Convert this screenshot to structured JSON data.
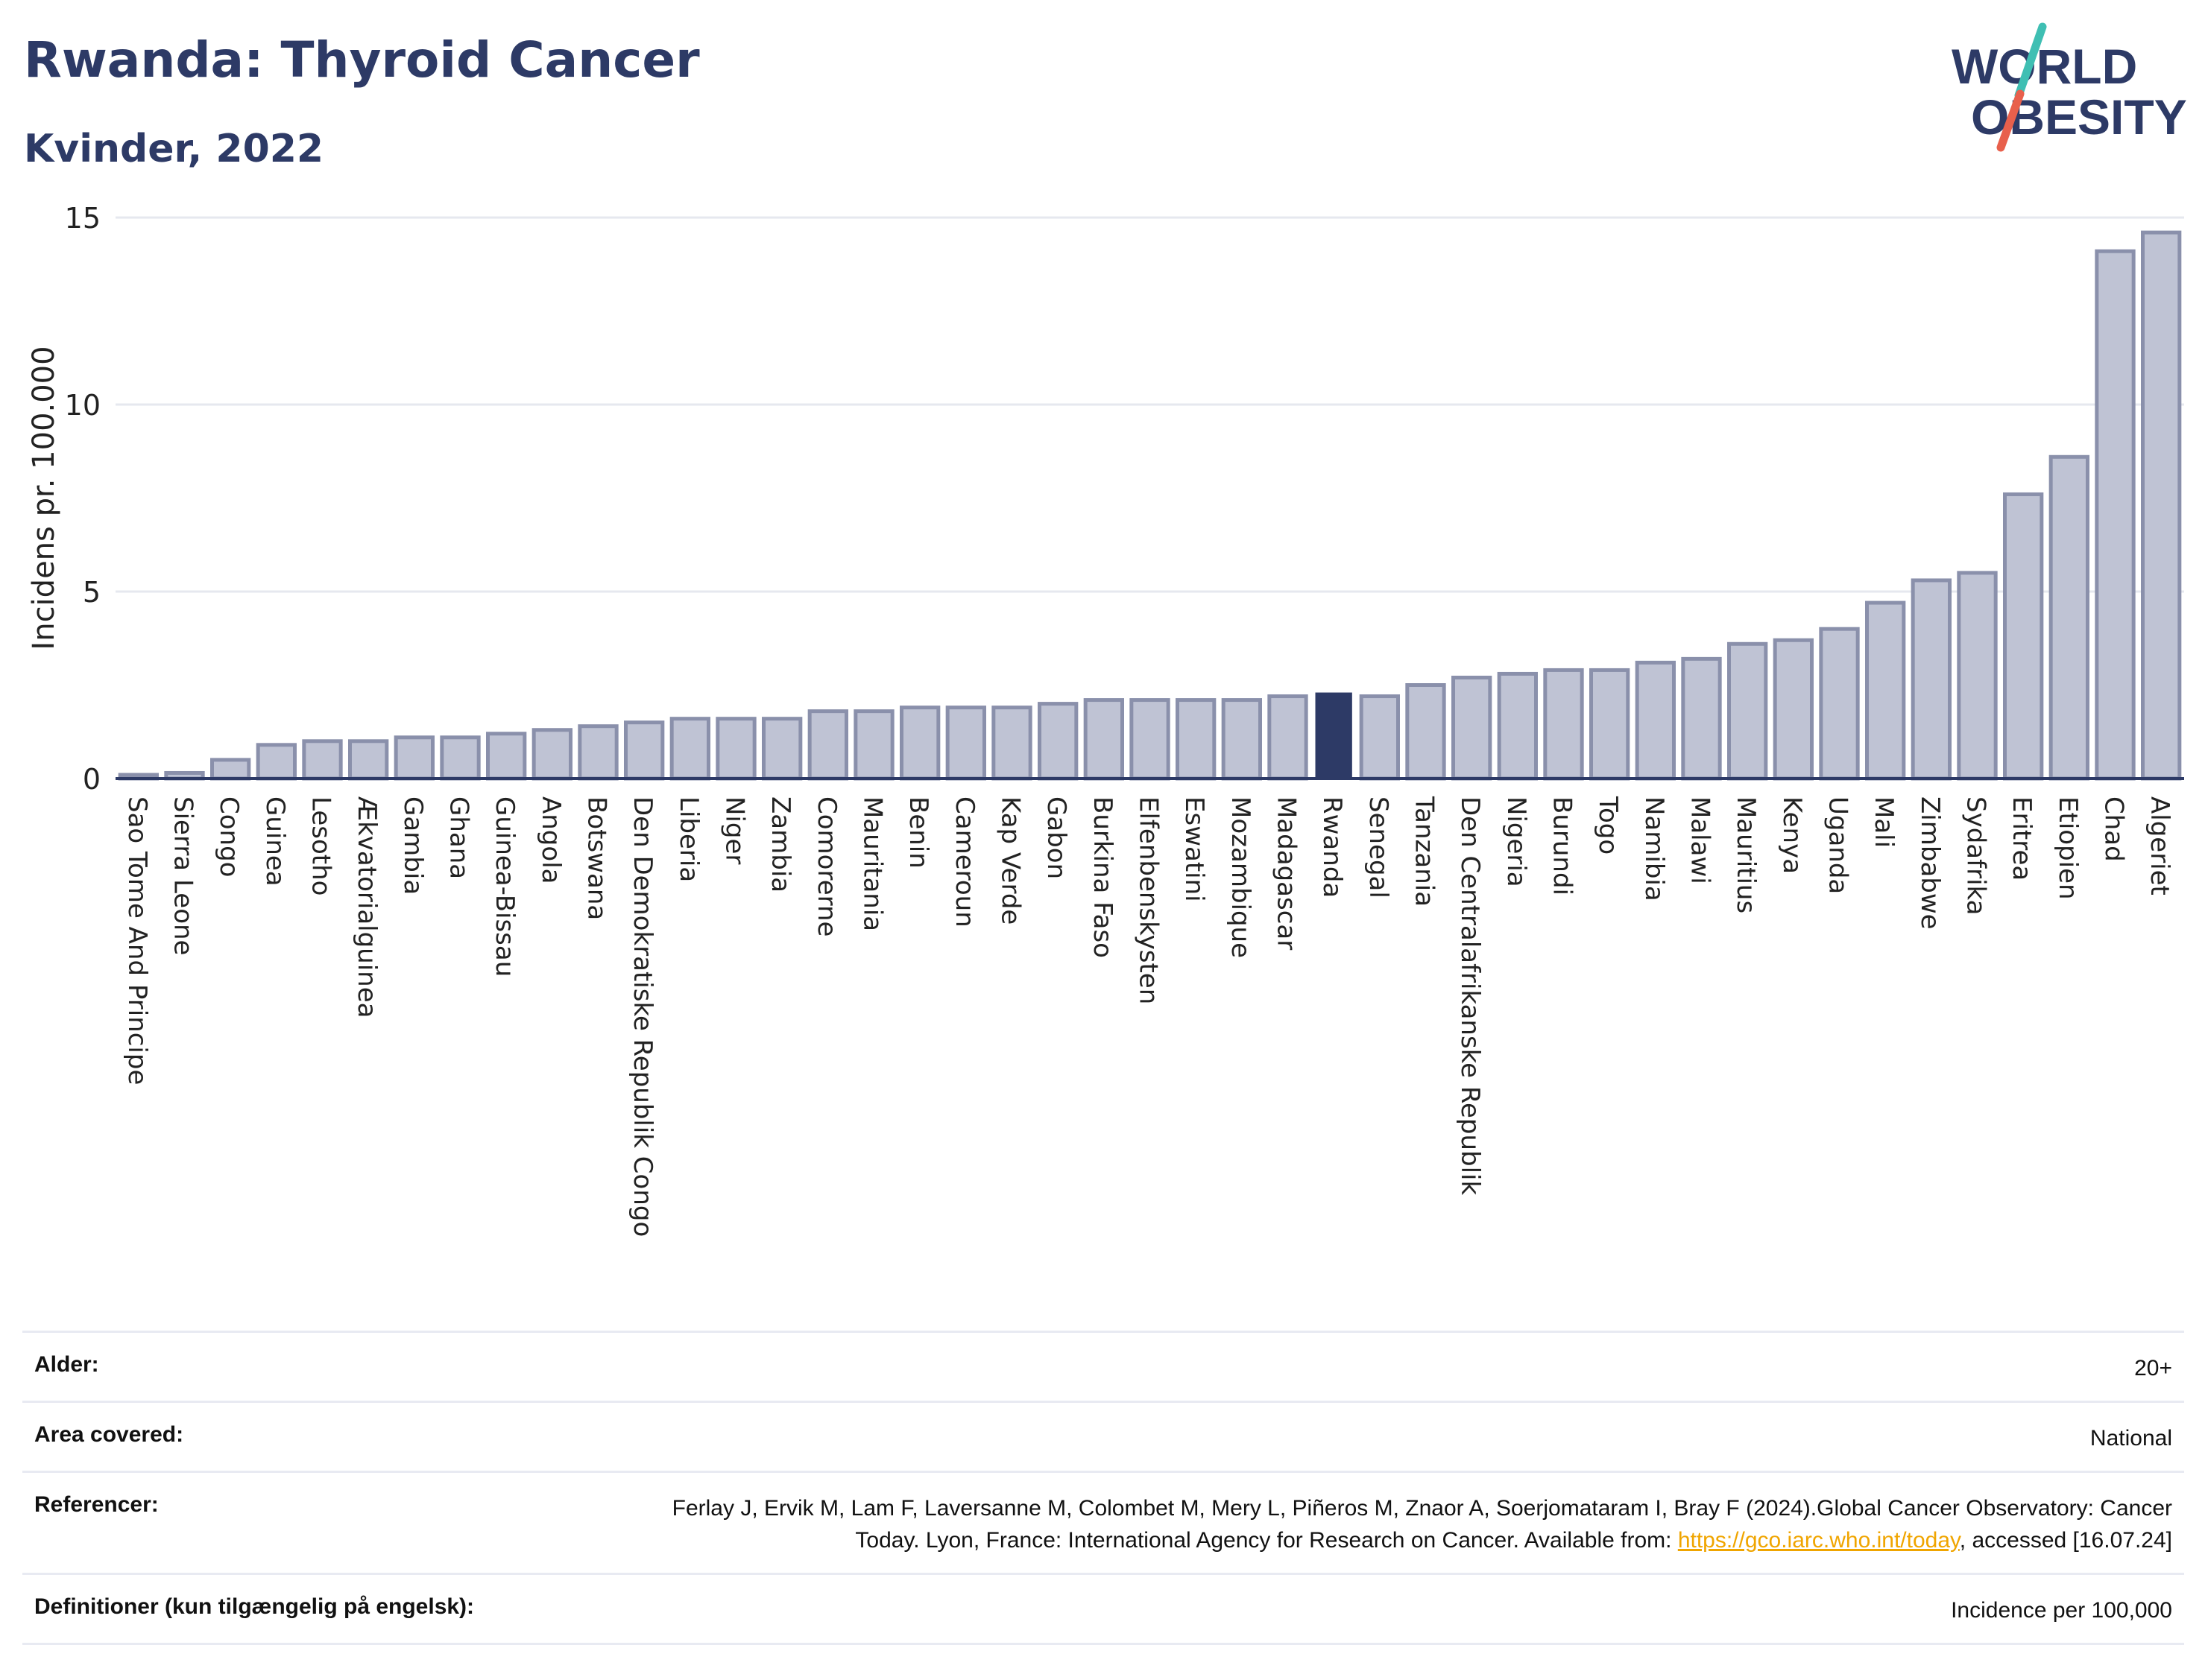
{
  "header": {
    "title": "Rwanda: Thyroid Cancer",
    "subtitle": "Kvinder, 2022"
  },
  "logo": {
    "line1": "WORLD",
    "line2": "OBESITY",
    "slash_colors": [
      "#3fbfb3",
      "#e8604c"
    ],
    "text_color": "#2d3a66"
  },
  "chart_data": {
    "type": "bar",
    "ylabel": "Incidens pr. 100.000",
    "ylim": [
      0,
      15
    ],
    "yticks": [
      0,
      5,
      10,
      15
    ],
    "grid": true,
    "highlight": "Rwanda",
    "colors": {
      "bar": "#bfc3d4",
      "bar_stroke": "#8a90ab",
      "highlight": "#2d3a66"
    },
    "categories": [
      "Sao Tome And Principe",
      "Sierra Leone",
      "Congo",
      "Guinea",
      "Lesotho",
      "Ækvatorialguinea",
      "Gambia",
      "Ghana",
      "Guinea-Bissau",
      "Angola",
      "Botswana",
      "Den Demokratiske Republik Congo",
      "Liberia",
      "Niger",
      "Zambia",
      "Comorerne",
      "Mauritania",
      "Benin",
      "Cameroun",
      "Kap Verde",
      "Gabon",
      "Burkina Faso",
      "Elfenbenskysten",
      "Eswatini",
      "Mozambique",
      "Madagascar",
      "Rwanda",
      "Senegal",
      "Tanzania",
      "Den Centralafrikanske Republik",
      "Nigeria",
      "Burundi",
      "Togo",
      "Namibia",
      "Malawi",
      "Mauritius",
      "Kenya",
      "Uganda",
      "Mali",
      "Zimbabwe",
      "Sydafrika",
      "Eritrea",
      "Etiopien",
      "Chad",
      "Algeriet"
    ],
    "values": [
      0.1,
      0.15,
      0.5,
      0.9,
      1.0,
      1.0,
      1.1,
      1.1,
      1.2,
      1.3,
      1.4,
      1.5,
      1.6,
      1.6,
      1.6,
      1.8,
      1.8,
      1.9,
      1.9,
      1.9,
      2.0,
      2.1,
      2.1,
      2.1,
      2.1,
      2.2,
      2.3,
      2.2,
      2.5,
      2.7,
      2.8,
      2.9,
      2.9,
      3.1,
      3.2,
      3.6,
      3.7,
      4.0,
      4.7,
      5.3,
      5.5,
      7.6,
      8.6,
      14.1,
      14.6
    ]
  },
  "info": {
    "rows": [
      {
        "label": "Alder:",
        "value": "20+"
      },
      {
        "label": "Area covered:",
        "value": "National"
      },
      {
        "label": "Referencer:",
        "value": "Ferlay J, Ervik M, Lam F, Laversanne M, Colombet M, Mery L, Piñeros M, Znaor A, Soerjomataram I, Bray F (2024).Global Cancer Observatory: Cancer Today. Lyon, France: International Agency for Research on Cancer. Available from: ",
        "link": "https://gco.iarc.who.int/today",
        "suffix": ", accessed [16.07.24]"
      },
      {
        "label": "Definitioner (kun tilgængelig på engelsk):",
        "value": "Incidence per 100,000"
      }
    ]
  }
}
